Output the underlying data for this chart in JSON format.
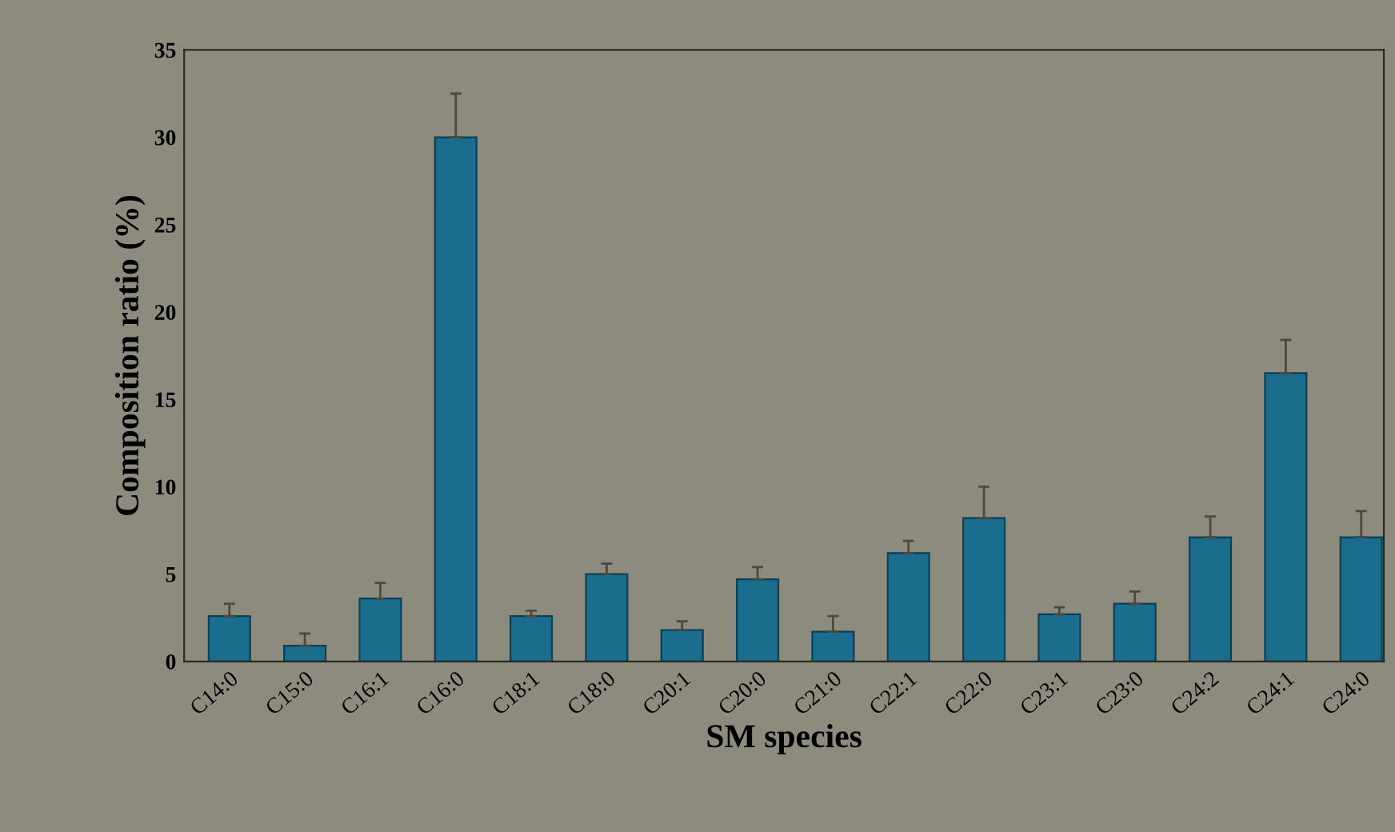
{
  "chart_data": {
    "type": "bar",
    "xlabel": "SM species",
    "ylabel": "Composition ratio (%)",
    "categories": [
      "C14:0",
      "C15:0",
      "C16:1",
      "C16:0",
      "C18:1",
      "C18:0",
      "C20:1",
      "C20:0",
      "C21:0",
      "C22:1",
      "C22:0",
      "C23:1",
      "C23:0",
      "C24:2",
      "C24:1",
      "C24:0"
    ],
    "values": [
      2.6,
      0.9,
      3.6,
      30.0,
      2.6,
      5.0,
      1.8,
      4.7,
      1.7,
      6.2,
      8.2,
      2.7,
      3.3,
      7.1,
      16.5,
      7.1
    ],
    "errors": [
      [
        2.6,
        3.3
      ],
      [
        0.9,
        1.6
      ],
      [
        3.6,
        4.5
      ],
      [
        30.0,
        32.5
      ],
      [
        2.6,
        2.9
      ],
      [
        5.0,
        5.6
      ],
      [
        1.8,
        2.3
      ],
      [
        4.7,
        5.4
      ],
      [
        1.7,
        2.6
      ],
      [
        6.2,
        6.9
      ],
      [
        8.2,
        10.0
      ],
      [
        2.7,
        3.1
      ],
      [
        3.3,
        4.0
      ],
      [
        7.1,
        8.3
      ],
      [
        16.5,
        18.4
      ],
      [
        7.1,
        8.6
      ]
    ],
    "color": "#1b6d8e",
    "ylim": [
      0,
      35
    ],
    "yticks": [
      0,
      5,
      10,
      15,
      20,
      25,
      30,
      35
    ],
    "grid": false
  }
}
